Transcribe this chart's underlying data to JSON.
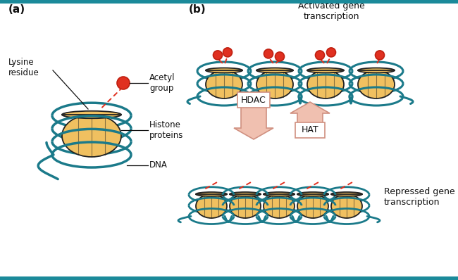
{
  "bg_color": "#ffffff",
  "border_color": "#1B8A9A",
  "histone_fill_outer": "#F0C060",
  "histone_fill_inner": "#FAE0A0",
  "histone_edge": "#222222",
  "dna_color": "#1B7A8A",
  "acetyl_color": "#E03020",
  "acetyl_edge": "#C02010",
  "arrow_fill": "#F0C0B0",
  "arrow_edge": "#D09080",
  "label_color": "#111111",
  "title_a": "(a)",
  "title_b": "(b)",
  "label_lysine": "Lysine\nresidue",
  "label_acetyl": "Acetyl\ngroup",
  "label_histone": "Histone\nproteins",
  "label_dna": "DNA",
  "label_activated": "Activated gene\ntranscription",
  "label_repressed": "Repressed gene\ntranscription",
  "label_hdac": "HDAC",
  "label_hat": "HAT",
  "dna_lw": 2.5,
  "hist_lw": 1.3
}
